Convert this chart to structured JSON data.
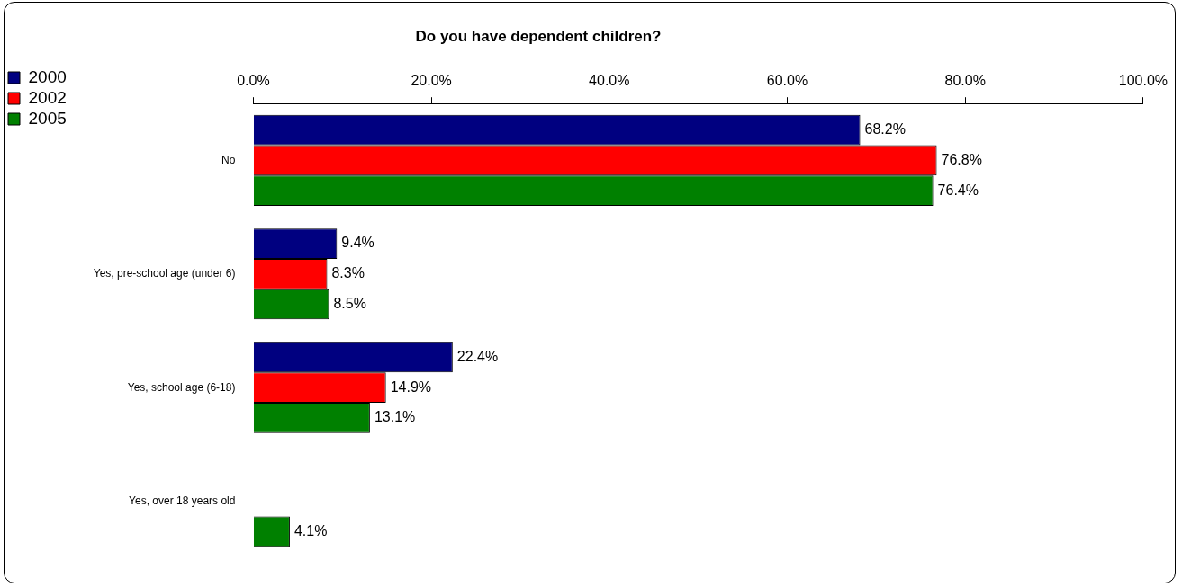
{
  "chart_data": {
    "type": "bar",
    "orientation": "horizontal",
    "title": "Do you have dependent children?",
    "categories": [
      "No",
      "Yes, pre-school age (under 6)",
      "Yes, school age (6-18)",
      "Yes, over 18 years old"
    ],
    "series": [
      {
        "name": "2000",
        "color": "#000080",
        "values": [
          68.2,
          9.4,
          22.4,
          null
        ],
        "value_labels": [
          "68.2%",
          "9.4%",
          "22.4%",
          null
        ]
      },
      {
        "name": "2002",
        "color": "#ff0000",
        "values": [
          76.8,
          8.3,
          14.9,
          null
        ],
        "value_labels": [
          "76.8%",
          "8.3%",
          "14.9%",
          null
        ]
      },
      {
        "name": "2005",
        "color": "#008000",
        "values": [
          76.4,
          8.5,
          13.1,
          4.1
        ],
        "value_labels": [
          "76.4%",
          "8.5%",
          "13.1%",
          "4.1%"
        ]
      }
    ],
    "xlim": [
      0,
      100
    ],
    "xticks": [
      {
        "value": 0,
        "label": "0.0%"
      },
      {
        "value": 20,
        "label": "20.0%"
      },
      {
        "value": 40,
        "label": "40.0%"
      },
      {
        "value": 60,
        "label": "60.0%"
      },
      {
        "value": 80,
        "label": "80.0%"
      },
      {
        "value": 100,
        "label": "100.0%"
      }
    ],
    "grid": false,
    "legend": "top left"
  }
}
